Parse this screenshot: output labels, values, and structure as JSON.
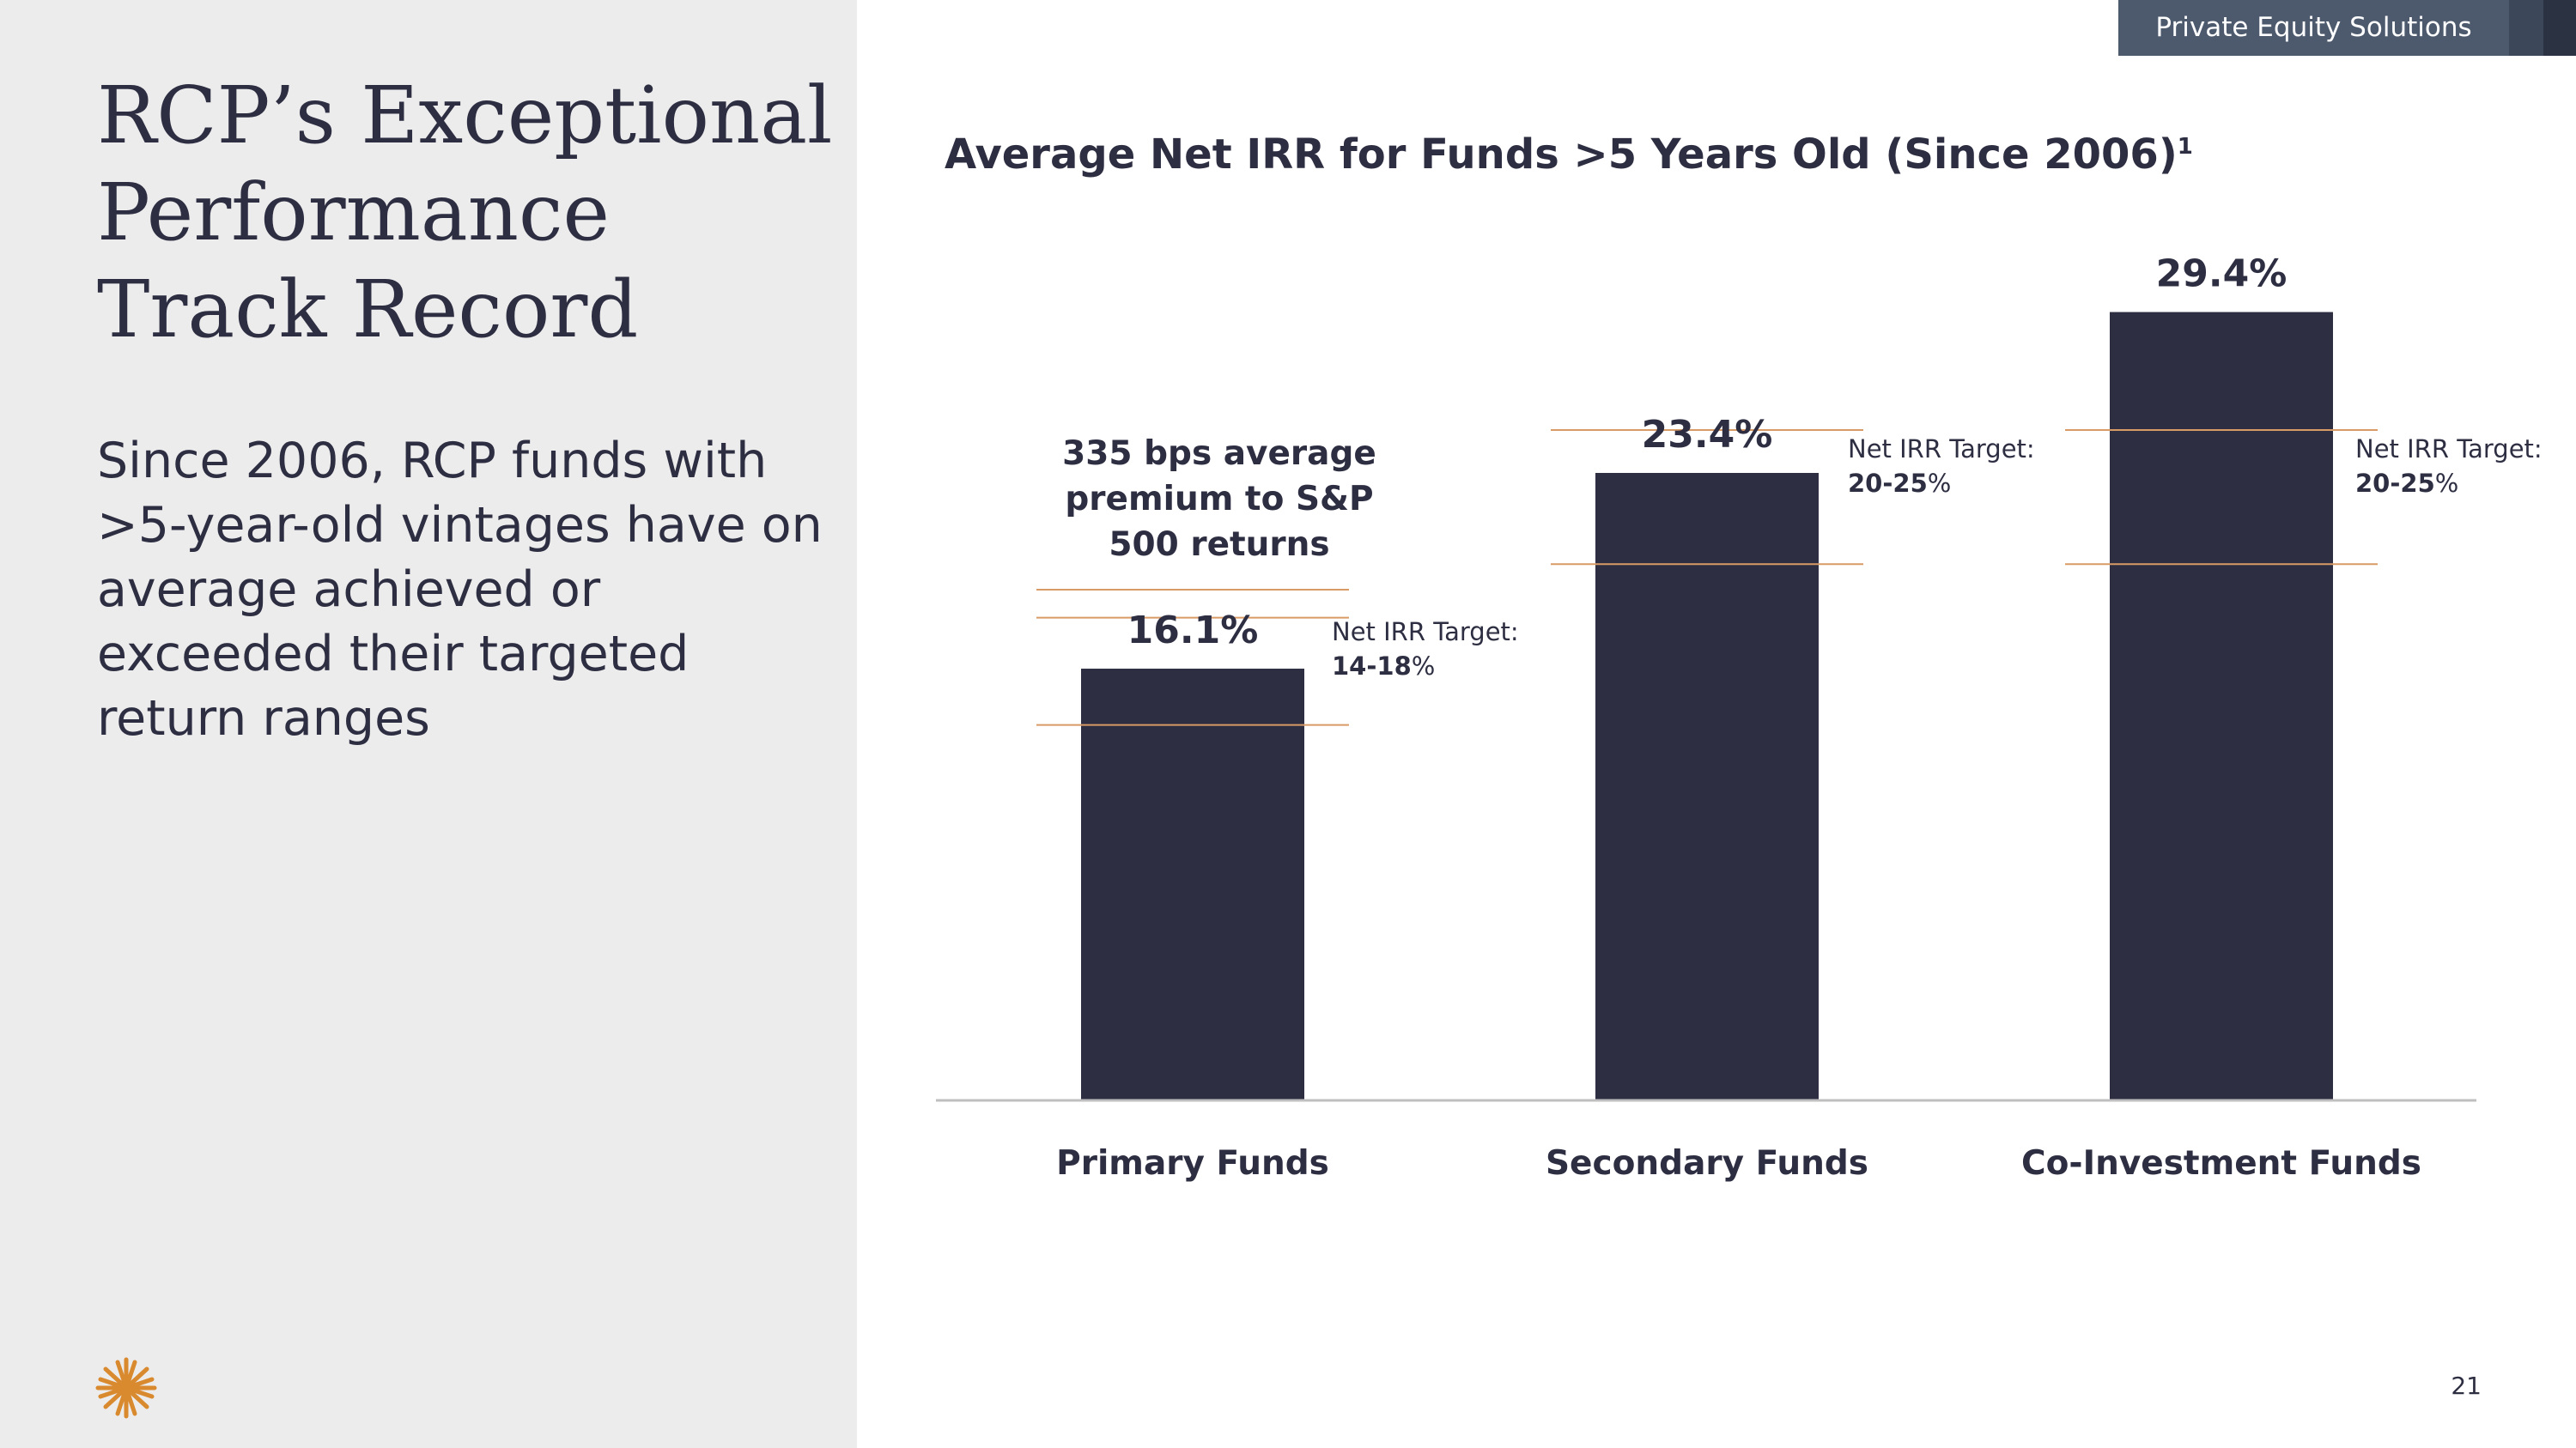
{
  "header": {
    "tag": "Private Equity Solutions",
    "page_number": "21"
  },
  "left": {
    "title": "RCP’s Exceptional Performance Track Record",
    "body": "Since 2006, RCP funds with >5-year-old vintages have on average achieved or exceeded their targeted return ranges"
  },
  "chart_data": {
    "type": "bar",
    "title": "Average Net IRR for Funds >5 Years Old (Since 2006)",
    "title_footnote": "1",
    "categories": [
      "Primary Funds",
      "Secondary Funds",
      "Co-Investment Funds"
    ],
    "values": [
      16.1,
      23.4,
      29.4
    ],
    "value_labels": [
      "16.1%",
      "23.4%",
      "29.4%"
    ],
    "targets": [
      {
        "label": "Net IRR Target:",
        "range_text": "14-18",
        "suffix": "%",
        "low": 14,
        "high": 18
      },
      {
        "label": "Net IRR Target:",
        "range_text": "20-25",
        "suffix": "%",
        "low": 20,
        "high": 25
      },
      {
        "label": "Net IRR Target:",
        "range_text": "20-25",
        "suffix": "%",
        "low": 20,
        "high": 25
      }
    ],
    "annotation": "335 bps average premium to S&P 500 returns",
    "ylim": [
      0,
      32
    ],
    "xlabel": "",
    "ylabel": "",
    "colors": {
      "bar": "#2d2e42",
      "target_line": "#d99b66",
      "axis": "#bfbfbf"
    }
  }
}
